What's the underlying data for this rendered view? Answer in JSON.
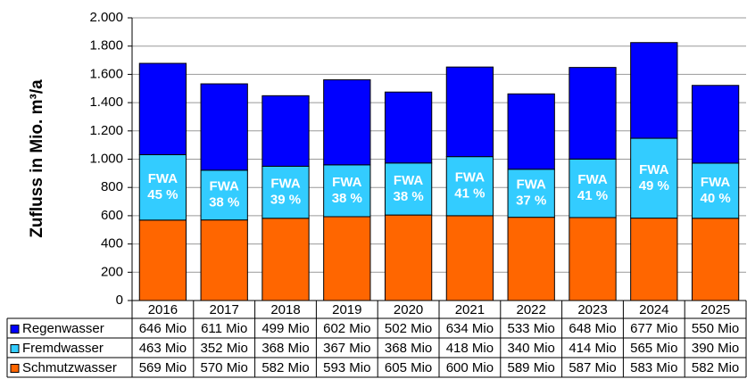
{
  "chart_data": {
    "type": "stacked_bar",
    "y_axis_label": "Zufluss in Mio. m³/a",
    "categories": [
      "2016",
      "2017",
      "2018",
      "2019",
      "2020",
      "2021",
      "2022",
      "2023",
      "2024",
      "2025"
    ],
    "series": [
      {
        "name": "Schmutzwasser",
        "color": "#ff6600",
        "values": [
          569,
          570,
          582,
          593,
          605,
          600,
          589,
          587,
          583,
          582
        ],
        "value_labels": [
          "569 Mio",
          "570 Mio",
          "582 Mio",
          "593 Mio",
          "605 Mio",
          "600 Mio",
          "589 Mio",
          "587 Mio",
          "583 Mio",
          "582 Mio"
        ]
      },
      {
        "name": "Fremdwasser",
        "color": "#33ccff",
        "values": [
          463,
          352,
          368,
          367,
          368,
          418,
          340,
          414,
          565,
          390
        ],
        "value_labels": [
          "463 Mio",
          "352 Mio",
          "368 Mio",
          "367 Mio",
          "368 Mio",
          "418 Mio",
          "340 Mio",
          "414 Mio",
          "565 Mio",
          "390 Mio"
        ]
      },
      {
        "name": "Regenwasser",
        "color": "#0000ff",
        "values": [
          646,
          611,
          499,
          602,
          502,
          634,
          533,
          648,
          677,
          550
        ],
        "value_labels": [
          "646 Mio",
          "611 Mio",
          "499 Mio",
          "602 Mio",
          "502 Mio",
          "634 Mio",
          "533 Mio",
          "648 Mio",
          "677 Mio",
          "550 Mio"
        ]
      }
    ],
    "annotation_title": "FWA",
    "annotations": [
      "45 %",
      "38 %",
      "39 %",
      "38 %",
      "38 %",
      "41 %",
      "37 %",
      "41 %",
      "49 %",
      "40 %"
    ],
    "ylim": [
      0,
      2000
    ],
    "yticks": [
      0,
      200,
      400,
      600,
      800,
      {
        "value": 1000,
        "label": "1.000"
      },
      {
        "value": 1200,
        "label": "1.200"
      },
      {
        "value": 1400,
        "label": "1.400"
      },
      {
        "value": 1600,
        "label": "1.600"
      },
      {
        "value": 1800,
        "label": "1.800"
      },
      {
        "value": 2000,
        "label": "2.000"
      }
    ],
    "grid": true
  }
}
